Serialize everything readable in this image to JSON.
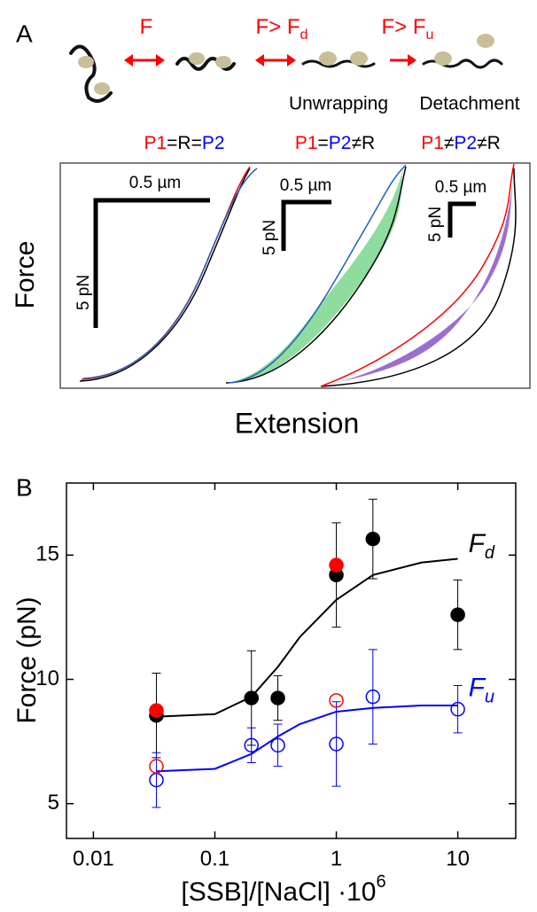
{
  "panel_a": {
    "label": "A",
    "arrow_labels": [
      {
        "text": "F"
      },
      {
        "text": "F> F",
        "sub": "d"
      },
      {
        "text": "F> F",
        "sub": "u"
      }
    ],
    "step_labels": [
      "Unwrapping",
      "Detachment"
    ],
    "conditions": [
      [
        {
          "text": "P1",
          "color": "#ff0000"
        },
        {
          "text": "=R=",
          "color": "#000000"
        },
        {
          "text": "P2",
          "color": "#0000ff"
        }
      ],
      [
        {
          "text": "P1",
          "color": "#ff0000"
        },
        {
          "text": "=",
          "color": "#000000"
        },
        {
          "text": "P2",
          "color": "#0000ff"
        },
        {
          "text": "≠R",
          "color": "#000000"
        }
      ],
      [
        {
          "text": "P1",
          "color": "#ff0000"
        },
        {
          "text": "≠",
          "color": "#000000"
        },
        {
          "text": "P2",
          "color": "#0000ff"
        },
        {
          "text": "≠R",
          "color": "#000000"
        }
      ]
    ],
    "scale_bars": [
      {
        "x": "0.5 µm",
        "y": "5 pN"
      },
      {
        "x": "0.5 µm",
        "y": "5 pN"
      },
      {
        "x": "0.5 µm",
        "y": "5 pN"
      }
    ],
    "y_label": "Force",
    "x_label": "Extension"
  },
  "chart_data": {
    "type": "scatter",
    "panel_label": "B",
    "y_label": "Force (pN)",
    "x_label": "[SSB]/[NaCl] ·10",
    "x_label_sup": "6",
    "log_x": true,
    "xlim": [
      0.006,
      30
    ],
    "ylim": [
      3.6,
      17.9
    ],
    "xticks": [
      0.01,
      0.1,
      1,
      10
    ],
    "yticks": [
      5,
      10,
      15
    ],
    "series": [
      {
        "kind": "line",
        "color": "#000000",
        "x": [
          0.033,
          0.1,
          0.2,
          0.33,
          0.5,
          1,
          2,
          5,
          10
        ],
        "values": [
          8.5,
          8.6,
          9.3,
          10.5,
          11.7,
          13.2,
          14.2,
          14.7,
          14.85
        ]
      },
      {
        "kind": "line",
        "color": "#0000ff",
        "x": [
          0.033,
          0.1,
          0.2,
          0.33,
          0.5,
          1,
          2,
          5,
          10
        ],
        "values": [
          6.3,
          6.4,
          7.0,
          7.7,
          8.2,
          8.7,
          8.85,
          8.95,
          8.95
        ]
      },
      {
        "kind": "points",
        "marker": "filled",
        "color": "#000000",
        "x": [
          0.033,
          0.2,
          0.33,
          1,
          2,
          10
        ],
        "values": [
          8.55,
          9.25,
          9.25,
          14.2,
          15.65,
          12.6
        ],
        "errors": [
          1.7,
          1.9,
          0.9,
          2.1,
          1.6,
          1.4
        ]
      },
      {
        "kind": "points",
        "marker": "filled",
        "color": "#ff0000",
        "x": [
          0.033,
          1
        ],
        "values": [
          8.75,
          14.6
        ]
      },
      {
        "kind": "points",
        "marker": "open",
        "color": "#0000ff",
        "x": [
          0.033,
          0.2,
          0.33,
          1,
          2,
          10
        ],
        "values": [
          5.95,
          7.35,
          7.35,
          7.4,
          9.3,
          8.8
        ],
        "errors": [
          1.1,
          0.7,
          0.85,
          1.7,
          1.9,
          0.95
        ]
      },
      {
        "kind": "points",
        "marker": "open",
        "color": "#ff0000",
        "x": [
          0.033,
          1
        ],
        "values": [
          6.5,
          9.15
        ]
      }
    ],
    "annotations": [
      {
        "text": "F",
        "sub": "d",
        "color": "#000000",
        "x": 10,
        "y": 15.4
      },
      {
        "text": "F",
        "sub": "u",
        "color": "#0000ff",
        "x": 10,
        "y": 9.6
      }
    ]
  }
}
